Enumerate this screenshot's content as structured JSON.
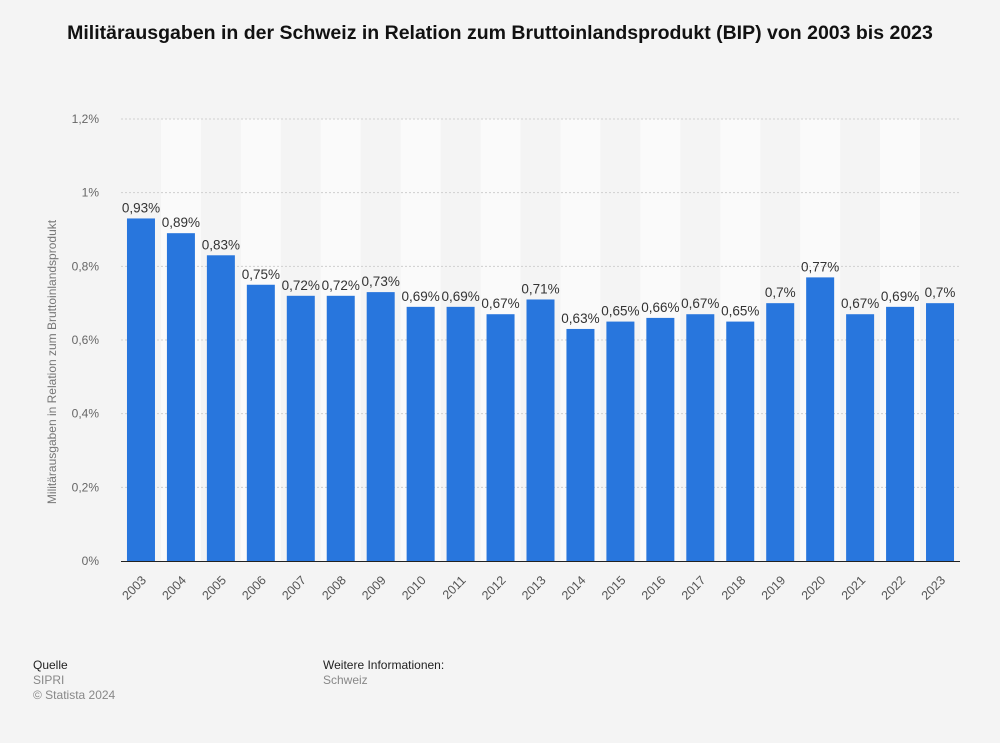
{
  "title": "Militärausgaben in der Schweiz in Relation zum Bruttoinlandsprodukt (BIP) von 2003 bis 2023",
  "chart_data": {
    "type": "bar",
    "title": "Militärausgaben in der Schweiz in Relation zum Bruttoinlandsprodukt (BIP) von 2003 bis 2023",
    "xlabel": "",
    "ylabel": "Militärausgaben in Relation zum Bruttoinlandsprodukt",
    "categories": [
      "2003",
      "2004",
      "2005",
      "2006",
      "2007",
      "2008",
      "2009",
      "2010",
      "2011",
      "2012",
      "2013",
      "2014",
      "2015",
      "2016",
      "2017",
      "2018",
      "2019",
      "2020",
      "2021",
      "2022",
      "2023"
    ],
    "values": [
      0.93,
      0.89,
      0.83,
      0.75,
      0.72,
      0.72,
      0.73,
      0.69,
      0.69,
      0.67,
      0.71,
      0.63,
      0.65,
      0.66,
      0.67,
      0.65,
      0.7,
      0.77,
      0.67,
      0.69,
      0.7
    ],
    "data_labels": [
      "0,93%",
      "0,89%",
      "0,83%",
      "0,75%",
      "0,72%",
      "0,72%",
      "0,73%",
      "0,69%",
      "0,69%",
      "0,67%",
      "0,71%",
      "0,63%",
      "0,65%",
      "0,66%",
      "0,67%",
      "0,65%",
      "0,7%",
      "0,77%",
      "0,67%",
      "0,69%",
      "0,7%"
    ],
    "ylim": [
      0,
      1.2
    ],
    "yticks": [
      0,
      0.2,
      0.4,
      0.6,
      0.8,
      1.0,
      1.2
    ],
    "ytick_labels": [
      "0%",
      "0,2%",
      "0,4%",
      "0,6%",
      "0,8%",
      "1%",
      "1,2%"
    ],
    "unit": "%",
    "grid": true,
    "legend": "none",
    "bar_color": "#2876dd"
  },
  "footer": {
    "source_heading": "Quelle",
    "source": "SIPRI",
    "copyright": "© Statista 2024",
    "info_heading": "Weitere Informationen:",
    "info": "Schweiz"
  }
}
